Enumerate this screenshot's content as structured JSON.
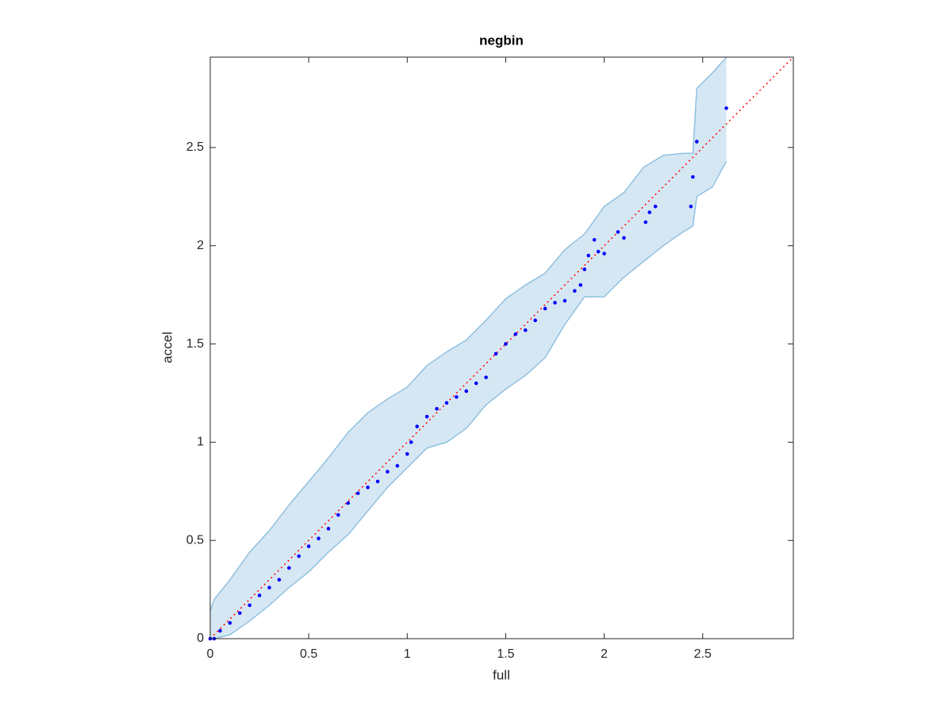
{
  "chart_data": {
    "type": "scatter",
    "title": "negbin",
    "x_label": "full",
    "y_label": "accel",
    "xlim": [
      0,
      2.96
    ],
    "ylim": [
      0,
      2.96
    ],
    "xticks": [
      0,
      0.5,
      1,
      1.5,
      2,
      2.5
    ],
    "yticks": [
      0,
      0.5,
      1,
      1.5,
      2,
      2.5
    ],
    "series": [
      {
        "color": "#0000ff",
        "x": [
          0,
          0.02,
          0.05,
          0.1,
          0.15,
          0.2,
          0.25,
          0.3,
          0.35,
          0.4,
          0.45,
          0.5,
          0.55,
          0.6,
          0.65,
          0.7,
          0.75,
          0.8,
          0.85,
          0.9,
          0.95,
          1.0,
          1.02,
          1.05,
          1.1,
          1.15,
          1.2,
          1.25,
          1.3,
          1.35,
          1.4,
          1.45,
          1.5,
          1.55,
          1.6,
          1.65,
          1.7,
          1.75,
          1.8,
          1.85,
          1.88,
          1.9,
          1.92,
          1.95,
          1.97,
          2.0,
          2.07,
          2.1,
          2.21,
          2.23,
          2.26,
          2.44,
          2.45,
          2.47,
          2.62
        ],
        "values": [
          0,
          0,
          0.04,
          0.08,
          0.13,
          0.17,
          0.22,
          0.26,
          0.3,
          0.36,
          0.42,
          0.47,
          0.51,
          0.56,
          0.63,
          0.69,
          0.74,
          0.77,
          0.8,
          0.85,
          0.88,
          0.94,
          1.0,
          1.08,
          1.13,
          1.17,
          1.2,
          1.23,
          1.26,
          1.3,
          1.33,
          1.45,
          1.5,
          1.55,
          1.57,
          1.62,
          1.68,
          1.71,
          1.72,
          1.77,
          1.8,
          1.88,
          1.95,
          2.03,
          1.97,
          1.96,
          2.07,
          2.04,
          2.12,
          2.17,
          2.2,
          2.2,
          2.35,
          2.53,
          2.7
        ]
      }
    ],
    "band": {
      "color": "#d6e7f4",
      "edge_color": "#8fc1e0",
      "x": [
        0,
        0.02,
        0.1,
        0.2,
        0.3,
        0.4,
        0.5,
        0.6,
        0.7,
        0.8,
        0.9,
        1.0,
        1.1,
        1.2,
        1.3,
        1.4,
        1.5,
        1.6,
        1.7,
        1.8,
        1.9,
        2.0,
        2.1,
        2.2,
        2.3,
        2.4,
        2.45,
        2.47,
        2.55,
        2.62
      ],
      "upper": [
        0.14,
        0.2,
        0.3,
        0.44,
        0.55,
        0.68,
        0.8,
        0.92,
        1.05,
        1.15,
        1.22,
        1.28,
        1.39,
        1.46,
        1.52,
        1.62,
        1.73,
        1.8,
        1.86,
        1.98,
        2.06,
        2.2,
        2.27,
        2.4,
        2.46,
        2.47,
        2.47,
        2.8,
        2.88,
        2.96
      ],
      "lower": [
        0,
        0,
        0.02,
        0.09,
        0.17,
        0.26,
        0.34,
        0.44,
        0.53,
        0.65,
        0.77,
        0.87,
        0.97,
        1.0,
        1.07,
        1.19,
        1.27,
        1.34,
        1.43,
        1.6,
        1.74,
        1.74,
        1.84,
        1.92,
        2.0,
        2.07,
        2.1,
        2.25,
        2.3,
        2.43
      ]
    },
    "reference": {
      "color": "#ff0000",
      "x": [
        0,
        2.96
      ],
      "values": [
        0,
        2.96
      ]
    }
  }
}
